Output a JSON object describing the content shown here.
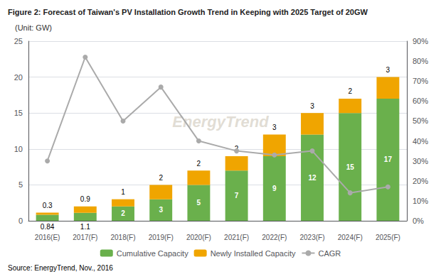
{
  "chart_data": {
    "type": "bar",
    "title": "Figure 2: Forecast of Taiwan's PV Installation Growth Trend in Keeping with 2025 Target of 20GW",
    "subtitle": "(Unit: GW)",
    "source": "Source: EnergyTrend, Nov., 2016",
    "watermark": "EnergyTrend",
    "categories": [
      "2016(E)",
      "2017(F)",
      "2018(F)",
      "2019(F)",
      "2020(F)",
      "2021(F)",
      "2022(F)",
      "2023(F)",
      "2024(F)",
      "2025(F)"
    ],
    "stacked": true,
    "grid": true,
    "legend": "bottom",
    "ylim": [
      0,
      25
    ],
    "yticks": [
      0,
      5,
      10,
      15,
      20,
      25
    ],
    "y2lim": [
      0,
      0.9
    ],
    "y2ticks": [
      {
        "value": 0.0,
        "label": "0%"
      },
      {
        "value": 0.1,
        "label": "10%"
      },
      {
        "value": 0.2,
        "label": "20%"
      },
      {
        "value": 0.3,
        "label": "30%"
      },
      {
        "value": 0.4,
        "label": "40%"
      },
      {
        "value": 0.5,
        "label": "50%"
      },
      {
        "value": 0.6,
        "label": "60%"
      },
      {
        "value": 0.7,
        "label": "70%"
      },
      {
        "value": 0.8,
        "label": "80%"
      },
      {
        "value": 0.9,
        "label": "90%"
      }
    ],
    "series": [
      {
        "name": "Cumulative Capacity",
        "type": "bar",
        "color": "#6ab04c",
        "data_labels": true,
        "values": [
          0.84,
          1.1,
          2,
          3,
          5,
          7,
          9,
          12,
          15,
          17
        ]
      },
      {
        "name": "Newly Installed Capacity",
        "type": "bar",
        "color": "#f0a500",
        "data_labels": true,
        "values": [
          0.3,
          0.9,
          1.0,
          2.0,
          2.0,
          2.0,
          3.0,
          3.0,
          2.0,
          3.0
        ]
      },
      {
        "name": "CAGR",
        "type": "line",
        "axis": "y2",
        "color": "#aaaaaa",
        "marker": "circle",
        "values": [
          0.3,
          0.82,
          0.5,
          0.67,
          0.4,
          0.35,
          0.33,
          0.35,
          0.14,
          0.17
        ]
      }
    ]
  }
}
